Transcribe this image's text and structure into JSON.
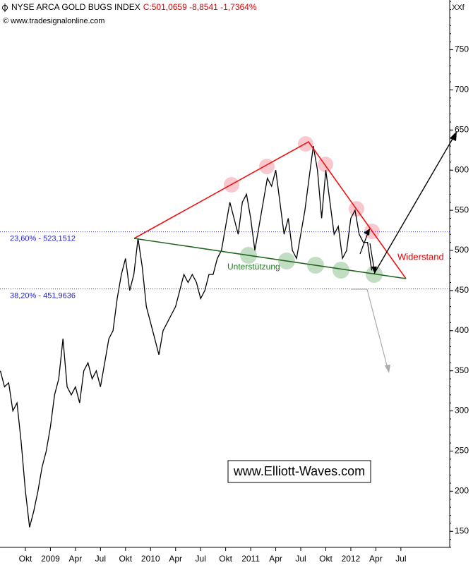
{
  "chart_data": {
    "type": "line",
    "title": "NYSE ARCA GOLD BUGS INDEX",
    "subtitle": "C:501,0659 -8,8541 -1,7364%",
    "source": "© www.tradesignalonline.com",
    "symbol": "XXf",
    "color": "#000000",
    "categories": [
      null,
      null,
      null,
      null,
      null,
      null,
      "Okt",
      null,
      null,
      null,
      null,
      null,
      "2009",
      null,
      null,
      null,
      null,
      null,
      "Apr",
      null,
      null,
      null,
      null,
      null,
      "Jul",
      null,
      null,
      null,
      null,
      null,
      "Okt",
      null,
      null,
      null,
      null,
      null,
      "2010",
      null,
      null,
      null,
      null,
      null,
      "Apr",
      null,
      null,
      null,
      null,
      null,
      "Jul",
      null,
      null,
      null,
      null,
      null,
      "Okt",
      null,
      null,
      null,
      null,
      null,
      "2011",
      null,
      null,
      null,
      null,
      null,
      "Apr",
      null,
      null,
      null,
      null,
      null,
      "Jul",
      null,
      null,
      null,
      null,
      null,
      "Okt",
      null,
      null,
      null,
      null,
      null,
      "2012",
      null,
      null,
      null,
      null,
      null,
      "Apr",
      null,
      null,
      null,
      null,
      null,
      "Jul",
      null,
      null,
      null,
      null,
      null,
      null,
      null,
      null,
      null
    ],
    "values": [
      350,
      330,
      335,
      300,
      310,
      260,
      200,
      155,
      175,
      200,
      230,
      250,
      280,
      320,
      340,
      390,
      330,
      320,
      330,
      310,
      350,
      360,
      340,
      350,
      330,
      360,
      390,
      400,
      440,
      470,
      490,
      450,
      470,
      515,
      480,
      430,
      410,
      390,
      370,
      400,
      410,
      420,
      430,
      450,
      470,
      460,
      470,
      460,
      440,
      450,
      470,
      470,
      490,
      500,
      530,
      560,
      540,
      520,
      560,
      570,
      540,
      500,
      530,
      560,
      590,
      580,
      600,
      560,
      520,
      540,
      500,
      490,
      520,
      550,
      590,
      630,
      600,
      540,
      600,
      560,
      520,
      530,
      490,
      500,
      540,
      550,
      520,
      510,
      510,
      475,
      null,
      null,
      null,
      null,
      null,
      null,
      null,
      null,
      null,
      null,
      null,
      null,
      null,
      null,
      null,
      null
    ],
    "ylim": [
      130,
      812
    ],
    "yticks": [
      150,
      200,
      250,
      300,
      350,
      400,
      450,
      500,
      550,
      600,
      650,
      700,
      750
    ],
    "levels": [
      {
        "value": 523.1512,
        "label": "23,60% - 523,1512"
      },
      {
        "value": 451.9636,
        "label": "38,20% - 451,9636"
      }
    ],
    "annotations": [
      "Widerstand",
      "Unterstützung",
      "www.Elliott-Waves.com"
    ]
  }
}
